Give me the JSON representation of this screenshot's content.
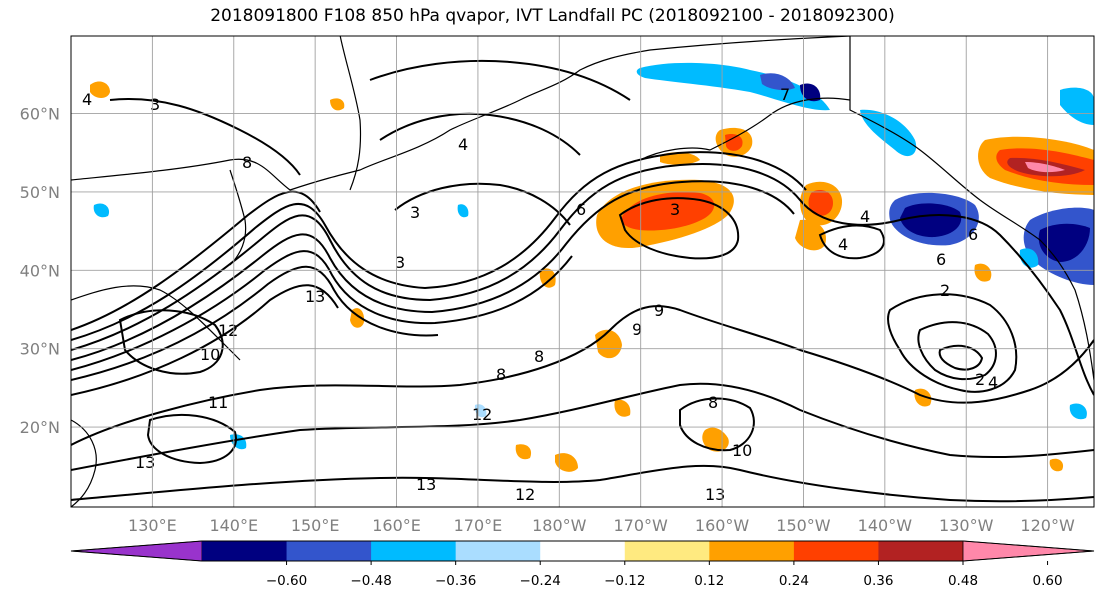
{
  "title": "2018091800 F108 850 hPa qvapor, IVT Landfall PC (2018092100 - 2018092300)",
  "latitudes": [
    {
      "label": "60°N",
      "value": 60
    },
    {
      "label": "50°N",
      "value": 50
    },
    {
      "label": "40°N",
      "value": 40
    },
    {
      "label": "30°N",
      "value": 30
    },
    {
      "label": "20°N",
      "value": 20
    }
  ],
  "longitudes": [
    {
      "label": "130°E",
      "value": 130
    },
    {
      "label": "140°E",
      "value": 140
    },
    {
      "label": "150°E",
      "value": 150
    },
    {
      "label": "160°E",
      "value": 160
    },
    {
      "label": "170°E",
      "value": 170
    },
    {
      "label": "180°W",
      "value": 180
    },
    {
      "label": "170°W",
      "value": 190
    },
    {
      "label": "160°W",
      "value": 200
    },
    {
      "label": "150°W",
      "value": 210
    },
    {
      "label": "140°W",
      "value": 220
    },
    {
      "label": "130°W",
      "value": 230
    },
    {
      "label": "120°W",
      "value": 240
    }
  ],
  "colorbar": {
    "colors": [
      "#9933cc",
      "#000080",
      "#3355cc",
      "#00bbff",
      "#aaddff",
      "#ffffff",
      "#ffea80",
      "#ffa000",
      "#ff4000",
      "#b22222",
      "#ff88aa"
    ],
    "ticks": [
      "−0.60",
      "−0.48",
      "−0.36",
      "−0.24",
      "−0.12",
      "0.12",
      "0.24",
      "0.36",
      "0.48",
      "0.60"
    ]
  },
  "contour_labels": [
    "4",
    "3",
    "4",
    "8",
    "3",
    "6",
    "3",
    "13",
    "12",
    "10",
    "11",
    "13",
    "8",
    "8",
    "9",
    "9",
    "12",
    "8",
    "10",
    "13",
    "12",
    "13",
    "2",
    "4",
    "6",
    "2",
    "4",
    "6",
    "4",
    "7",
    "3"
  ]
}
